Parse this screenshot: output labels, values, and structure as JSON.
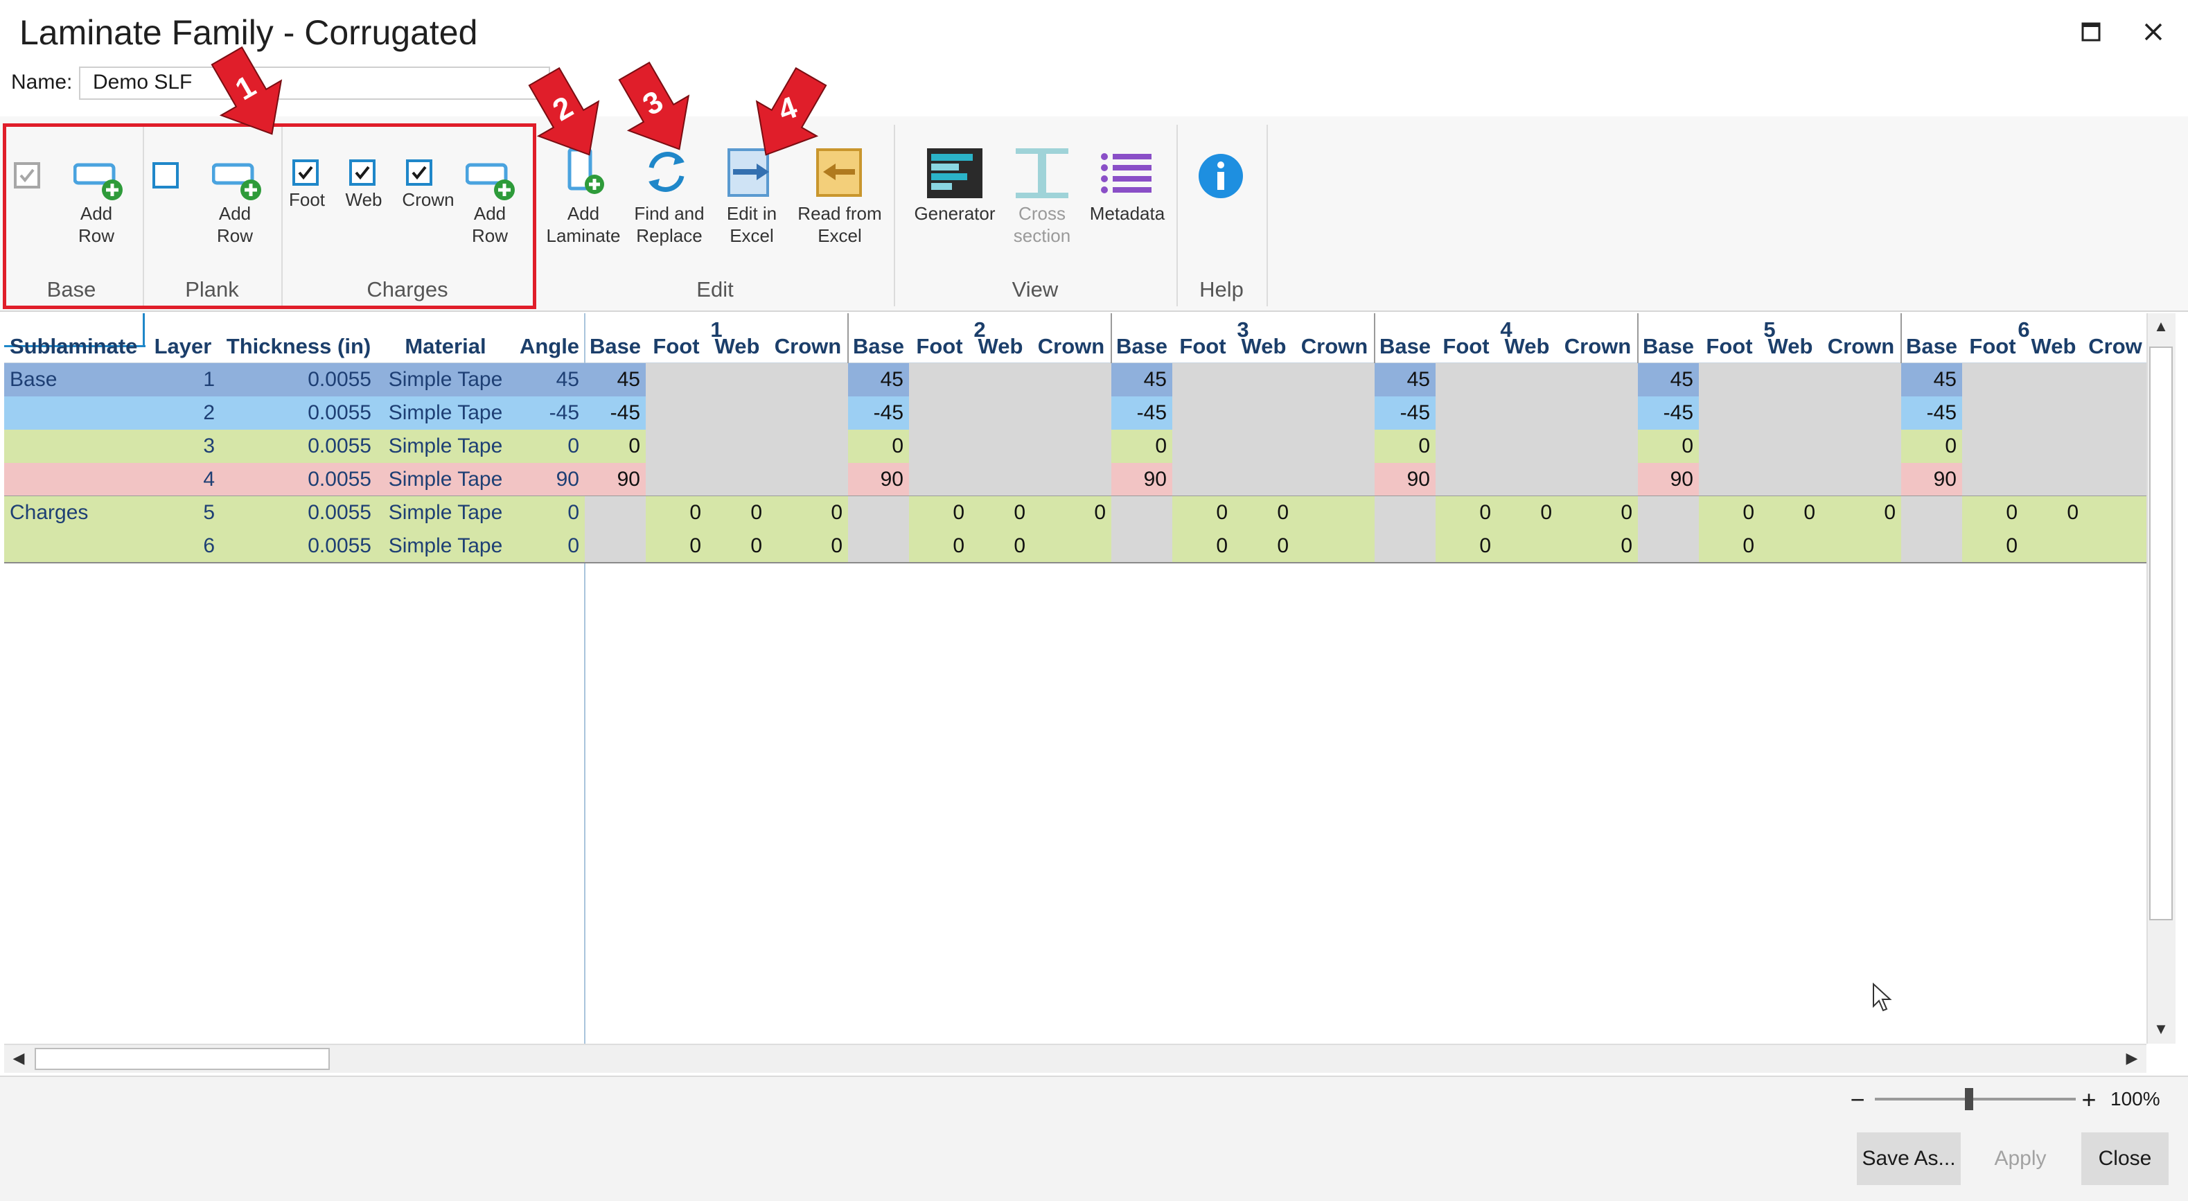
{
  "window": {
    "title": "Laminate Family - Corrugated",
    "maximize_icon": "maximize-icon",
    "close_icon": "close-icon"
  },
  "name_field": {
    "label": "Name:",
    "value": "Demo SLF"
  },
  "ribbon": {
    "base_group": {
      "label": "Base",
      "add_row": "Add Row"
    },
    "plank_group": {
      "label": "Plank",
      "add_row": "Add Row"
    },
    "charges_group": {
      "label": "Charges",
      "foot": "Foot",
      "web": "Web",
      "crown": "Crown",
      "add_row": "Add Row"
    },
    "edit_group": {
      "label": "Edit",
      "add_laminate": "Add Laminate",
      "find_replace": "Find and Replace",
      "edit_excel": "Edit in Excel",
      "read_excel": "Read from Excel"
    },
    "view_group": {
      "label": "View",
      "generator": "Generator",
      "cross_section": "Cross section",
      "metadata": "Metadata"
    },
    "help_group": {
      "label": "Help"
    },
    "annotations": [
      "1",
      "2",
      "3",
      "4"
    ]
  },
  "grid": {
    "columns": [
      "Sublaminate",
      "Layer",
      "Thickness (in)",
      "Material",
      "Angle"
    ],
    "laminate_groups": [
      "1",
      "2",
      "3",
      "4",
      "5",
      "6"
    ],
    "sub_columns": [
      "Base",
      "Foot",
      "Web",
      "Crown"
    ],
    "last_sub_columns": [
      "Base",
      "Foot",
      "Web",
      "Crow"
    ],
    "rows": [
      {
        "sublaminate": "Base",
        "layer": "1",
        "thickness": "0.0055",
        "material": "Simple Tape",
        "angle": "45",
        "laminates": [
          [
            "45",
            "",
            "",
            ""
          ],
          [
            "45",
            "",
            "",
            ""
          ],
          [
            "45",
            "",
            "",
            ""
          ],
          [
            "45",
            "",
            "",
            ""
          ],
          [
            "45",
            "",
            "",
            ""
          ],
          [
            "45",
            "",
            "",
            ""
          ]
        ]
      },
      {
        "sublaminate": "",
        "layer": "2",
        "thickness": "0.0055",
        "material": "Simple Tape",
        "angle": "-45",
        "laminates": [
          [
            "-45",
            "",
            "",
            ""
          ],
          [
            "-45",
            "",
            "",
            ""
          ],
          [
            "-45",
            "",
            "",
            ""
          ],
          [
            "-45",
            "",
            "",
            ""
          ],
          [
            "-45",
            "",
            "",
            ""
          ],
          [
            "-45",
            "",
            "",
            ""
          ]
        ]
      },
      {
        "sublaminate": "",
        "layer": "3",
        "thickness": "0.0055",
        "material": "Simple Tape",
        "angle": "0",
        "laminates": [
          [
            "0",
            "",
            "",
            ""
          ],
          [
            "0",
            "",
            "",
            ""
          ],
          [
            "0",
            "",
            "",
            ""
          ],
          [
            "0",
            "",
            "",
            ""
          ],
          [
            "0",
            "",
            "",
            ""
          ],
          [
            "0",
            "",
            "",
            ""
          ]
        ]
      },
      {
        "sublaminate": "",
        "layer": "4",
        "thickness": "0.0055",
        "material": "Simple Tape",
        "angle": "90",
        "laminates": [
          [
            "90",
            "",
            "",
            ""
          ],
          [
            "90",
            "",
            "",
            ""
          ],
          [
            "90",
            "",
            "",
            ""
          ],
          [
            "90",
            "",
            "",
            ""
          ],
          [
            "90",
            "",
            "",
            ""
          ],
          [
            "90",
            "",
            "",
            ""
          ]
        ]
      },
      {
        "sublaminate": "Charges",
        "layer": "5",
        "thickness": "0.0055",
        "material": "Simple Tape",
        "angle": "0",
        "laminates": [
          [
            "",
            "0",
            "0",
            "0"
          ],
          [
            "",
            "0",
            "0",
            "0"
          ],
          [
            "",
            "0",
            "0",
            ""
          ],
          [
            "",
            "0",
            "0",
            "0"
          ],
          [
            "",
            "0",
            "0",
            "0"
          ],
          [
            "",
            "0",
            "0",
            ""
          ]
        ]
      },
      {
        "sublaminate": "",
        "layer": "6",
        "thickness": "0.0055",
        "material": "Simple Tape",
        "angle": "0",
        "laminates": [
          [
            "",
            "0",
            "0",
            "0"
          ],
          [
            "",
            "0",
            "0",
            ""
          ],
          [
            "",
            "0",
            "0",
            ""
          ],
          [
            "",
            "0",
            "",
            "0"
          ],
          [
            "",
            "0",
            "",
            ""
          ],
          [
            "",
            "0",
            "",
            ""
          ]
        ]
      }
    ]
  },
  "zoom": {
    "level": "100%",
    "minus": "−",
    "plus": "+"
  },
  "footer": {
    "save_as": "Save As...",
    "apply": "Apply",
    "close": "Close"
  },
  "colors": {
    "row_base": "#9bb7dc",
    "row_base_sel": "#8fb0dc",
    "row_minus45": "#9ccff3",
    "row_zero": "#d6e6a8",
    "row_ninety": "#f2c4c4",
    "row_charges": "#d6e6a8",
    "empty_cell": "#d7d7d7",
    "accent_blue": "#1f87c9",
    "annotation_red": "#e01e2a"
  }
}
